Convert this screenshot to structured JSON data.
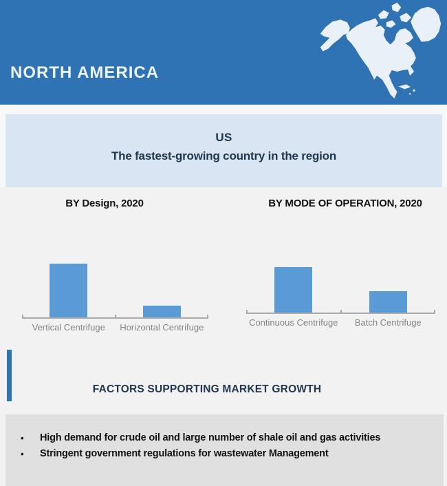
{
  "header": {
    "title": "NORTH AMERICA",
    "bg_color": "#2F73B5",
    "text_color": "#EDF3F9",
    "map_icon": "north-america-map-icon",
    "map_fill": "#E9F0F8"
  },
  "banner": {
    "country": "US",
    "subtitle": "The fastest-growing country in the region",
    "bg_color": "#D9E5F2",
    "text_color": "#21374F"
  },
  "chart_data": [
    {
      "type": "bar",
      "title": "BY Design, 2020",
      "categories": [
        "Vertical Centrifuge",
        "Horizontal Centrifuge"
      ],
      "values": [
        0.87,
        0.19
      ],
      "ylim": [
        0,
        1
      ],
      "value_axis_visible": false,
      "grid": false,
      "legend": "none",
      "bar_color": "#5B9BD5",
      "axis_color": "#ABABAB",
      "label_color": "#848484"
    },
    {
      "type": "bar",
      "title": "BY MODE OF OPERATION, 2020",
      "categories": [
        "Continuous Centrifuge",
        "Batch Centrifuge"
      ],
      "values": [
        0.73,
        0.34
      ],
      "ylim": [
        0,
        1
      ],
      "value_axis_visible": false,
      "grid": false,
      "legend": "none",
      "bar_color": "#5B9BD5",
      "axis_color": "#ABABAB",
      "label_color": "#848484"
    }
  ],
  "factors": {
    "title": "FACTORS SUPPORTING MARKET GROWTH",
    "accent_color": "#2E74B5",
    "items": [
      "High demand for crude oil and large number of shale oil and gas activities",
      "Stringent government regulations for wastewater Management"
    ]
  }
}
